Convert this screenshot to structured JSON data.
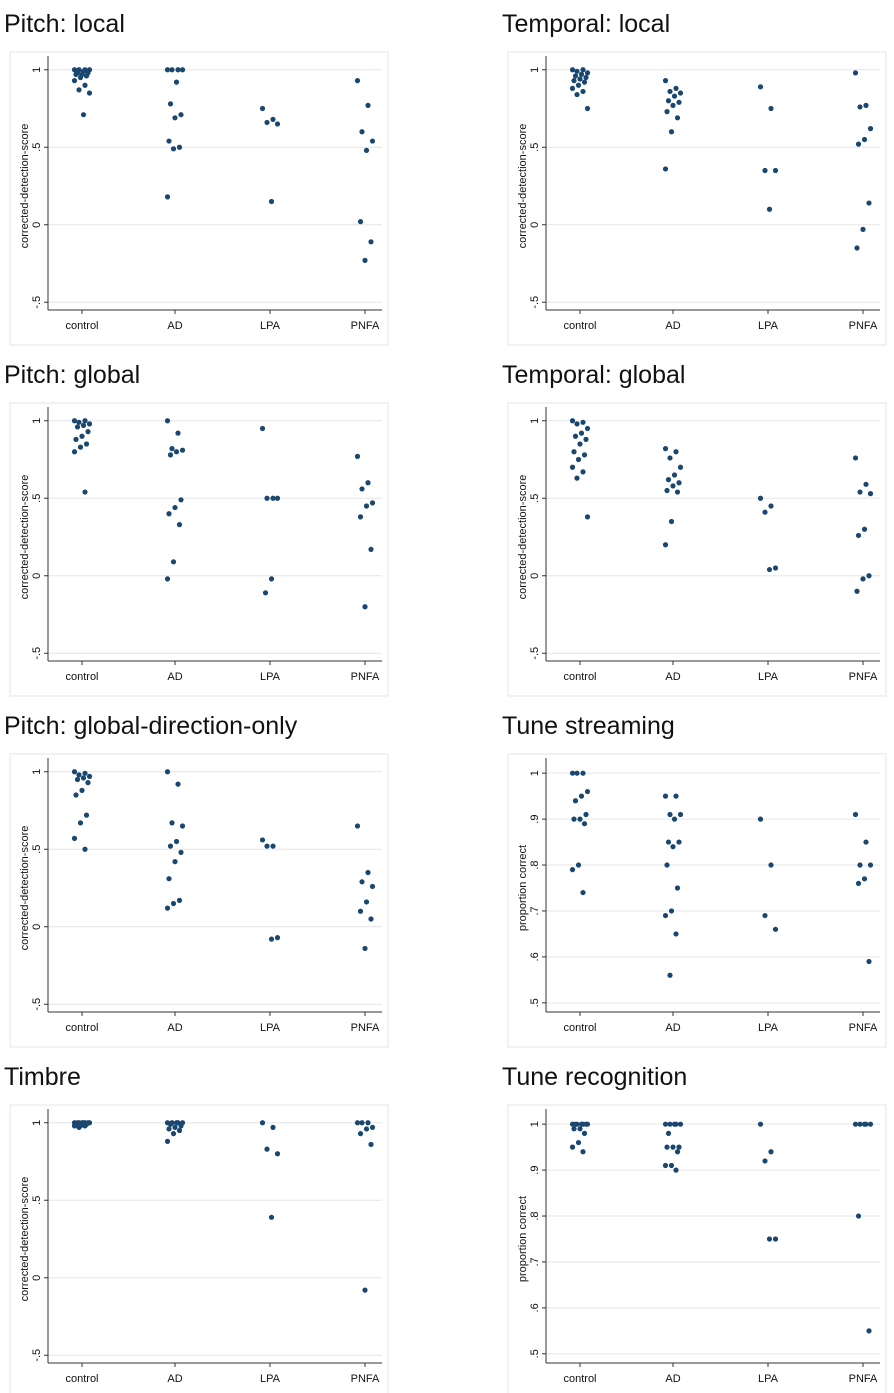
{
  "chart_data": [
    {
      "type": "scatter",
      "title": "Pitch: local",
      "y_label": "corrected-detection-score",
      "categories": [
        "control",
        "AD",
        "LPA",
        "PNFA"
      ],
      "values": [
        [
          1,
          1,
          1,
          1,
          0.99,
          0.98,
          0.98,
          0.97,
          0.97,
          0.96,
          0.95,
          0.93,
          0.9,
          0.87,
          0.85,
          0.71
        ],
        [
          1,
          1,
          1,
          1,
          0.92,
          0.78,
          0.71,
          0.69,
          0.54,
          0.5,
          0.49,
          0.18
        ],
        [
          0.75,
          0.68,
          0.66,
          0.65,
          0.15
        ],
        [
          0.93,
          0.77,
          0.6,
          0.54,
          0.48,
          0.02,
          -0.11,
          -0.23
        ]
      ],
      "color": "#1a476f",
      "ylim": [
        -0.55,
        1.05
      ],
      "yticks": [
        {
          "value": -0.5,
          "label": "-.5"
        },
        0,
        {
          "value": 0.5,
          "label": ".5"
        },
        1
      ],
      "grid": true
    },
    {
      "type": "scatter",
      "title": "Temporal: local",
      "y_label": "corrected-detection-score",
      "categories": [
        "control",
        "AD",
        "LPA",
        "PNFA"
      ],
      "values": [
        [
          1,
          1,
          0.99,
          0.98,
          0.97,
          0.96,
          0.95,
          0.94,
          0.93,
          0.92,
          0.9,
          0.88,
          0.86,
          0.84,
          0.75
        ],
        [
          0.93,
          0.88,
          0.86,
          0.85,
          0.83,
          0.8,
          0.79,
          0.77,
          0.73,
          0.69,
          0.6,
          0.36
        ],
        [
          0.89,
          0.75,
          0.35,
          0.35,
          0.1
        ],
        [
          0.98,
          0.77,
          0.76,
          0.62,
          0.55,
          0.52,
          0.14,
          -0.03,
          -0.15
        ]
      ],
      "color": "#1a476f",
      "ylim": [
        -0.55,
        1.05
      ],
      "yticks": [
        {
          "value": -0.5,
          "label": "-.5"
        },
        0,
        {
          "value": 0.5,
          "label": ".5"
        },
        1
      ],
      "grid": true
    },
    {
      "type": "scatter",
      "title": "Pitch: global",
      "y_label": "corrected-detection-score",
      "categories": [
        "control",
        "AD",
        "LPA",
        "PNFA"
      ],
      "values": [
        [
          1,
          1,
          0.99,
          0.98,
          0.97,
          0.96,
          0.93,
          0.9,
          0.88,
          0.85,
          0.83,
          0.8,
          0.54
        ],
        [
          1,
          0.92,
          0.82,
          0.81,
          0.8,
          0.78,
          0.49,
          0.44,
          0.4,
          0.33,
          0.09,
          -0.02
        ],
        [
          0.95,
          0.5,
          0.5,
          0.5,
          -0.02,
          -0.11
        ],
        [
          0.77,
          0.6,
          0.56,
          0.47,
          0.45,
          0.38,
          0.17,
          -0.2
        ]
      ],
      "color": "#1a476f",
      "ylim": [
        -0.55,
        1.05
      ],
      "yticks": [
        {
          "value": -0.5,
          "label": "-.5"
        },
        0,
        {
          "value": 0.5,
          "label": ".5"
        },
        1
      ],
      "grid": true
    },
    {
      "type": "scatter",
      "title": "Temporal: global",
      "y_label": "corrected-detection-score",
      "categories": [
        "control",
        "AD",
        "LPA",
        "PNFA"
      ],
      "values": [
        [
          1,
          0.99,
          0.98,
          0.95,
          0.92,
          0.9,
          0.88,
          0.85,
          0.8,
          0.78,
          0.75,
          0.7,
          0.67,
          0.63,
          0.38
        ],
        [
          0.82,
          0.8,
          0.76,
          0.7,
          0.65,
          0.62,
          0.6,
          0.58,
          0.55,
          0.54,
          0.35,
          0.2
        ],
        [
          0.5,
          0.45,
          0.41,
          0.05,
          0.04
        ],
        [
          0.76,
          0.59,
          0.54,
          0.53,
          0.3,
          0.26,
          0,
          -0.02,
          -0.1
        ]
      ],
      "color": "#1a476f",
      "ylim": [
        -0.55,
        1.05
      ],
      "yticks": [
        {
          "value": -0.5,
          "label": "-.5"
        },
        0,
        {
          "value": 0.5,
          "label": ".5"
        },
        1
      ],
      "grid": true
    },
    {
      "type": "scatter",
      "title": "Pitch: global-direction-only",
      "y_label": "corrected-detection-score",
      "categories": [
        "control",
        "AD",
        "LPA",
        "PNFA"
      ],
      "values": [
        [
          1,
          0.99,
          0.98,
          0.97,
          0.96,
          0.95,
          0.93,
          0.88,
          0.85,
          0.72,
          0.67,
          0.57,
          0.5
        ],
        [
          1,
          0.92,
          0.67,
          0.65,
          0.55,
          0.52,
          0.48,
          0.42,
          0.31,
          0.17,
          0.15,
          0.12
        ],
        [
          0.56,
          0.52,
          0.52,
          -0.07,
          -0.08
        ],
        [
          0.65,
          0.35,
          0.29,
          0.26,
          0.16,
          0.1,
          0.05,
          -0.14
        ]
      ],
      "color": "#1a476f",
      "ylim": [
        -0.55,
        1.05
      ],
      "yticks": [
        {
          "value": -0.5,
          "label": "-.5"
        },
        0,
        {
          "value": 0.5,
          "label": ".5"
        },
        1
      ],
      "grid": true
    },
    {
      "type": "scatter",
      "title": "Tune streaming",
      "y_label": "proportion correct",
      "categories": [
        "control",
        "AD",
        "LPA",
        "PNFA"
      ],
      "values": [
        [
          1,
          1,
          1,
          0.96,
          0.95,
          0.94,
          0.91,
          0.9,
          0.9,
          0.89,
          0.8,
          0.79,
          0.74
        ],
        [
          0.95,
          0.95,
          0.91,
          0.91,
          0.9,
          0.85,
          0.85,
          0.84,
          0.8,
          0.75,
          0.7,
          0.69,
          0.65,
          0.56
        ],
        [
          0.9,
          0.8,
          0.69,
          0.66
        ],
        [
          0.91,
          0.85,
          0.8,
          0.8,
          0.77,
          0.76,
          0.59
        ]
      ],
      "color": "#1a476f",
      "ylim": [
        0.48,
        1.02
      ],
      "yticks": [
        {
          "value": 0.5,
          "label": ".5"
        },
        {
          "value": 0.6,
          "label": ".6"
        },
        {
          "value": 0.7,
          "label": ".7"
        },
        {
          "value": 0.8,
          "label": ".8"
        },
        {
          "value": 0.9,
          "label": ".9"
        },
        1
      ],
      "grid": true
    },
    {
      "type": "scatter",
      "title": "Timbre",
      "y_label": "corrected-detection-score",
      "categories": [
        "control",
        "AD",
        "LPA",
        "PNFA"
      ],
      "values": [
        [
          1,
          1,
          1,
          1,
          1,
          1,
          1,
          1,
          0.99,
          0.99,
          0.98,
          0.98,
          0.98,
          0.97
        ],
        [
          1,
          1,
          1,
          1,
          1,
          0.99,
          0.98,
          0.97,
          0.96,
          0.95,
          0.93,
          0.88
        ],
        [
          1,
          0.97,
          0.83,
          0.8,
          0.39
        ],
        [
          1,
          1,
          1,
          0.97,
          0.96,
          0.93,
          0.86,
          -0.08
        ]
      ],
      "color": "#1a476f",
      "ylim": [
        -0.55,
        1.05
      ],
      "yticks": [
        {
          "value": -0.5,
          "label": "-.5"
        },
        0,
        {
          "value": 0.5,
          "label": ".5"
        },
        1
      ],
      "grid": true
    },
    {
      "type": "scatter",
      "title": "Tune recognition",
      "y_label": "proportion correct",
      "categories": [
        "control",
        "AD",
        "LPA",
        "PNFA"
      ],
      "values": [
        [
          1,
          1,
          1,
          1,
          1,
          1,
          1,
          0.99,
          0.99,
          0.98,
          0.96,
          0.95,
          0.94
        ],
        [
          1,
          1,
          1,
          1,
          1,
          0.98,
          0.95,
          0.95,
          0.95,
          0.94,
          0.91,
          0.91,
          0.9
        ],
        [
          1,
          0.94,
          0.92,
          0.75,
          0.75
        ],
        [
          1,
          1,
          1,
          1,
          1,
          0.8,
          0.55
        ]
      ],
      "color": "#1a476f",
      "ylim": [
        0.48,
        1.02
      ],
      "yticks": [
        {
          "value": 0.5,
          "label": ".5"
        },
        {
          "value": 0.6,
          "label": ".6"
        },
        {
          "value": 0.7,
          "label": ".7"
        },
        {
          "value": 0.8,
          "label": ".8"
        },
        {
          "value": 0.9,
          "label": ".9"
        },
        1
      ],
      "grid": true
    }
  ]
}
